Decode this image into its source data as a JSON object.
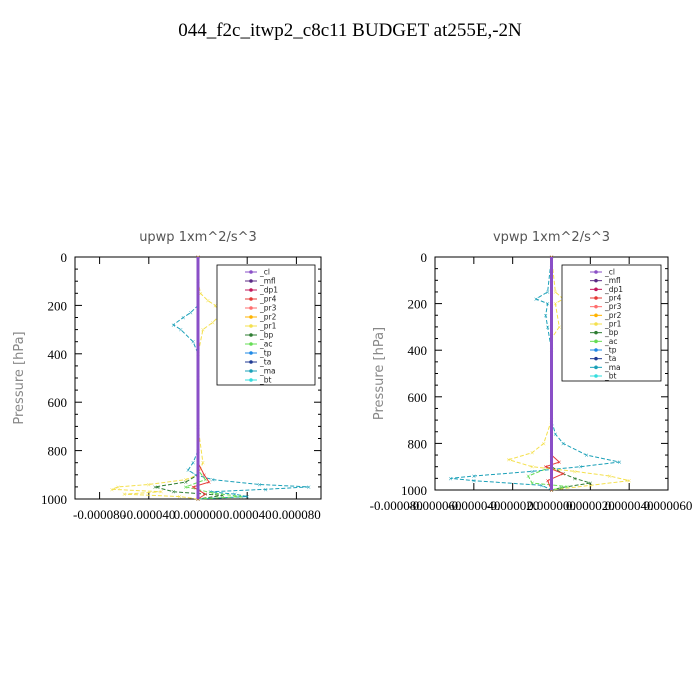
{
  "title": "044_f2c_itwp2_c8c11  BUDGET at255E,-2N",
  "legend_entries": [
    "_cl",
    "_mfl",
    "_dp1",
    "_pr4",
    "_pr3",
    "_pr2",
    "_pr1",
    "_bp",
    "_ac",
    "_tp",
    "_ta",
    "_ma",
    "_bt"
  ],
  "series_colors": {
    "_cl": "#8a4fc7",
    "_mfl": "#5b2a86",
    "_dp1": "#c2185b",
    "_pr4": "#e53935",
    "_pr3": "#ff6e6e",
    "_pr2": "#ffb300",
    "_pr1": "#f4e04d",
    "_bp": "#2e7d32",
    "_ac": "#66dd55",
    "_tp": "#1e88e5",
    "_ta": "#1f3a93",
    "_ma": "#1aa0b8",
    "_bt": "#33dddd"
  },
  "chart_data": [
    {
      "type": "line",
      "title": "upwp   1xm^2/s^3",
      "ylabel": "Pressure [hPa]",
      "xlabel": "",
      "ylim": [
        1000,
        0
      ],
      "xlim": [
        -0.0001,
        0.0001
      ],
      "xticks": [
        -8e-05,
        -4e-05,
        0.0,
        4e-05,
        8e-05
      ],
      "xtick_labels": [
        "-0.000080",
        "-0.000040",
        "0.000000",
        "0.000040",
        "0.000080"
      ],
      "yticks": [
        0,
        200,
        400,
        600,
        800,
        1000
      ],
      "ytick_labels": [
        "0",
        "200",
        "400",
        "600",
        "800",
        "1000"
      ],
      "legend_position": "top-right",
      "grid": false,
      "series": [
        {
          "name": "_ma",
          "y": [
            0,
            100,
            200,
            230,
            250,
            280,
            300,
            350,
            400,
            500,
            700,
            800,
            850,
            880,
            900,
            920,
            940,
            950,
            960,
            970,
            980,
            990,
            1000
          ],
          "x": [
            0,
            0,
            0,
            -6e-06,
            -1.2e-05,
            -2e-05,
            -1.4e-05,
            -4e-06,
            0,
            0,
            0,
            0,
            -4e-06,
            -8e-06,
            -2e-06,
            1.2e-05,
            5e-05,
            9e-05,
            5.5e-05,
            1e-05,
            3e-05,
            4e-05,
            0
          ]
        },
        {
          "name": "_pr1",
          "y": [
            0,
            100,
            150,
            180,
            200,
            240,
            270,
            300,
            400,
            700,
            850,
            900,
            920,
            940,
            950,
            960,
            970,
            980,
            990,
            1000
          ],
          "x": [
            0,
            0,
            2e-06,
            8e-06,
            1.4e-05,
            1.8e-05,
            1.2e-05,
            4e-06,
            0,
            0,
            4e-06,
            0,
            -1e-05,
            -4e-05,
            -6.5e-05,
            -7e-05,
            -3e-05,
            -6e-05,
            -1.5e-05,
            0
          ]
        },
        {
          "name": "_bp",
          "y": [
            0,
            800,
            900,
            930,
            950,
            970,
            985,
            1000
          ],
          "x": [
            0,
            0,
            0,
            -1e-05,
            -3.5e-05,
            -2e-05,
            2e-05,
            0
          ]
        },
        {
          "name": "_ac",
          "y": [
            0,
            880,
            920,
            950,
            975,
            990,
            1000
          ],
          "x": [
            0,
            0,
            6e-06,
            -1e-05,
            1.2e-05,
            3.5e-05,
            0
          ]
        },
        {
          "name": "_pr4",
          "y": [
            0,
            850,
            900,
            930,
            950,
            980,
            1000
          ],
          "x": [
            0,
            0,
            5e-06,
            9e-06,
            -4e-06,
            6e-06,
            0
          ]
        },
        {
          "name": "_dp1",
          "y": [
            0,
            1000
          ],
          "x": [
            0,
            0
          ]
        },
        {
          "name": "_cl",
          "y": [
            0,
            1000
          ],
          "x": [
            0,
            0
          ]
        }
      ]
    },
    {
      "type": "line",
      "title": "vpwp   1xm^2/s^3",
      "ylabel": "Pressure [hPa]",
      "xlabel": "",
      "ylim": [
        1000,
        0
      ],
      "xlim": [
        -6e-05,
        6e-05
      ],
      "xticks": [
        -8e-05,
        -6e-05,
        -4e-05,
        -2e-05,
        0.0,
        2e-05,
        4e-05,
        6e-05
      ],
      "xtick_labels": [
        "-0.000080",
        "-0.000060",
        "-0.000040",
        "-0.000020",
        "0.000000",
        "0.000020",
        "0.000040",
        "0.000060"
      ],
      "yticks": [
        0,
        200,
        400,
        600,
        800,
        1000
      ],
      "ytick_labels": [
        "0",
        "200",
        "400",
        "600",
        "800",
        "1000"
      ],
      "legend_position": "top-right",
      "grid": false,
      "series": [
        {
          "name": "_ma",
          "y": [
            0,
            150,
            180,
            200,
            250,
            300,
            400,
            700,
            760,
            800,
            850,
            880,
            900,
            920,
            940,
            950,
            960,
            980,
            1000
          ],
          "x": [
            0,
            -2e-06,
            -8e-06,
            -2e-06,
            -3e-06,
            -2e-06,
            0,
            0,
            2e-06,
            6e-06,
            1.8e-05,
            3.5e-05,
            1.5e-05,
            -1e-05,
            -4e-05,
            -5.2e-05,
            -4e-05,
            -5e-06,
            0
          ]
        },
        {
          "name": "_pr1",
          "y": [
            0,
            150,
            180,
            200,
            300,
            350,
            400,
            700,
            800,
            840,
            870,
            900,
            920,
            940,
            960,
            980,
            1000
          ],
          "x": [
            0,
            2e-06,
            6e-06,
            2e-06,
            4e-06,
            0,
            0,
            0,
            -4e-06,
            -1e-05,
            -2.2e-05,
            -1e-05,
            1.2e-05,
            3e-05,
            4e-05,
            2e-05,
            0
          ]
        },
        {
          "name": "_bp",
          "y": [
            0,
            900,
            930,
            950,
            970,
            990,
            1000
          ],
          "x": [
            0,
            0,
            6e-06,
            1.2e-05,
            2e-05,
            5e-06,
            0
          ]
        },
        {
          "name": "_ac",
          "y": [
            0,
            900,
            940,
            970,
            985,
            1000
          ],
          "x": [
            0,
            0,
            -1.2e-05,
            -1e-05,
            8e-06,
            0
          ]
        },
        {
          "name": "_pr4",
          "y": [
            0,
            850,
            880,
            900,
            930,
            960,
            1000
          ],
          "x": [
            0,
            0,
            4e-06,
            -3e-06,
            6e-06,
            -2e-06,
            0
          ]
        },
        {
          "name": "_dp1",
          "y": [
            0,
            1000
          ],
          "x": [
            0,
            0
          ]
        },
        {
          "name": "_cl",
          "y": [
            0,
            1000
          ],
          "x": [
            0,
            0
          ]
        }
      ]
    }
  ]
}
